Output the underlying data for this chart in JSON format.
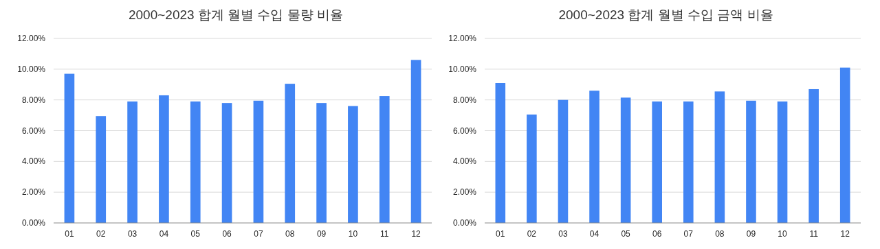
{
  "chart_data": [
    {
      "type": "bar",
      "title": "2000~2023 합계 월별 수입 물량 비율",
      "categories": [
        "01",
        "02",
        "03",
        "04",
        "05",
        "06",
        "07",
        "08",
        "09",
        "10",
        "11",
        "12"
      ],
      "values": [
        9.7,
        6.95,
        7.9,
        8.3,
        7.9,
        7.8,
        7.95,
        9.05,
        7.8,
        7.6,
        8.25,
        10.6
      ],
      "color": "#4285f4",
      "ylim": [
        0,
        12
      ],
      "yticks": [
        {
          "value": 0,
          "label": "0.00%"
        },
        {
          "value": 2,
          "label": "2.00%"
        },
        {
          "value": 4,
          "label": "4.00%"
        },
        {
          "value": 6,
          "label": "6.00%"
        },
        {
          "value": 8,
          "label": "8.00%"
        },
        {
          "value": 10,
          "label": "10.00%"
        },
        {
          "value": 12,
          "label": "12.00%"
        }
      ],
      "grid": "y"
    },
    {
      "type": "bar",
      "title": "2000~2023 합계 월별 수입 금액 비율",
      "categories": [
        "01",
        "02",
        "03",
        "04",
        "05",
        "06",
        "07",
        "08",
        "09",
        "10",
        "11",
        "12"
      ],
      "values": [
        9.1,
        7.05,
        8.0,
        8.6,
        8.15,
        7.9,
        7.9,
        8.55,
        7.95,
        7.9,
        8.7,
        10.1
      ],
      "color": "#4285f4",
      "ylim": [
        0,
        12
      ],
      "yticks": [
        {
          "value": 0,
          "label": "0.00%"
        },
        {
          "value": 2,
          "label": "2.00%"
        },
        {
          "value": 4,
          "label": "4.00%"
        },
        {
          "value": 6,
          "label": "6.00%"
        },
        {
          "value": 8,
          "label": "8.00%"
        },
        {
          "value": 10,
          "label": "10.00%"
        },
        {
          "value": 12,
          "label": "12.00%"
        }
      ],
      "grid": "y"
    }
  ]
}
